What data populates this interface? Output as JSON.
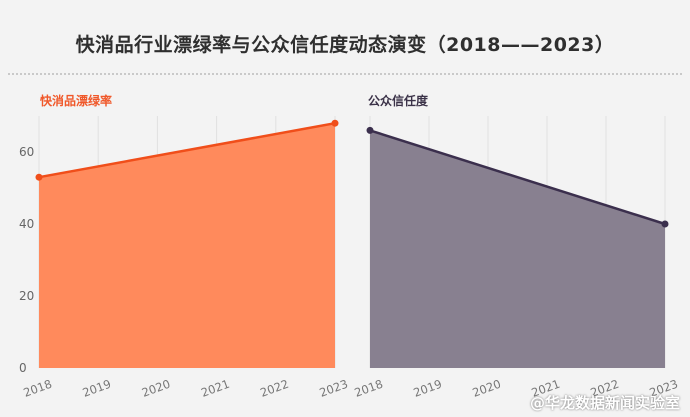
{
  "title": "快消品行业漂绿率与公众信任度动态演变（2018——2023）",
  "watermark": "@华龙数据新闻实验室",
  "colors": {
    "greenwash_fill": "#ff8a5c",
    "greenwash_line": "#f04e1a",
    "trust_fill": "#888090",
    "trust_line": "#3b2f4d",
    "grid": "#e0e0e0"
  },
  "chart_data": [
    {
      "type": "area",
      "title": "快消品漂绿率",
      "x": [
        "2018",
        "2019",
        "2020",
        "2021",
        "2022",
        "2023"
      ],
      "series": [
        {
          "name": "快消品漂绿率",
          "points": [
            {
              "x": "2018",
              "y": 53
            },
            {
              "x": "2023",
              "y": 68
            }
          ]
        }
      ],
      "ylim": [
        0,
        70
      ],
      "yticks": [
        0,
        20,
        40,
        60
      ],
      "grid": true
    },
    {
      "type": "area",
      "title": "公众信任度",
      "x": [
        "2018",
        "2019",
        "2020",
        "2021",
        "2022",
        "2023"
      ],
      "series": [
        {
          "name": "公众信任度",
          "points": [
            {
              "x": "2018",
              "y": 66
            },
            {
              "x": "2023",
              "y": 40
            }
          ]
        }
      ],
      "ylim": [
        0,
        70
      ],
      "yticks": [
        0,
        20,
        40,
        60
      ],
      "grid": true
    }
  ]
}
